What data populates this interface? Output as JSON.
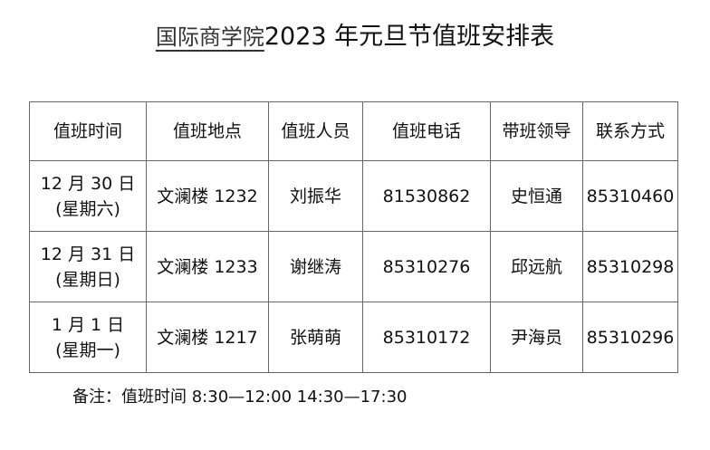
{
  "title": {
    "school": "国际商学院",
    "rest": "2023 年元旦节值班安排表"
  },
  "table": {
    "headers": [
      "值班时间",
      "值班地点",
      "值班人员",
      "值班电话",
      "带班领导",
      "联系方式"
    ],
    "rows": [
      {
        "date": "12 月 30 日",
        "weekday": "(星期六)",
        "place": "文澜楼 1232",
        "staff": "刘振华",
        "phone": "81530862",
        "leader": "史恒通",
        "contact": "85310460"
      },
      {
        "date": "12 月 31 日",
        "weekday": "(星期日)",
        "place": "文澜楼 1233",
        "staff": "谢继涛",
        "phone": "85310276",
        "leader": "邱远航",
        "contact": "85310298"
      },
      {
        "date": "1 月 1 日",
        "weekday": "(星期一)",
        "place": "文澜楼 1217",
        "staff": "张萌萌",
        "phone": "85310172",
        "leader": "尹海员",
        "contact": "85310296"
      }
    ]
  },
  "note": "备注：值班时间  8:30—12:00 14:30—17:30"
}
